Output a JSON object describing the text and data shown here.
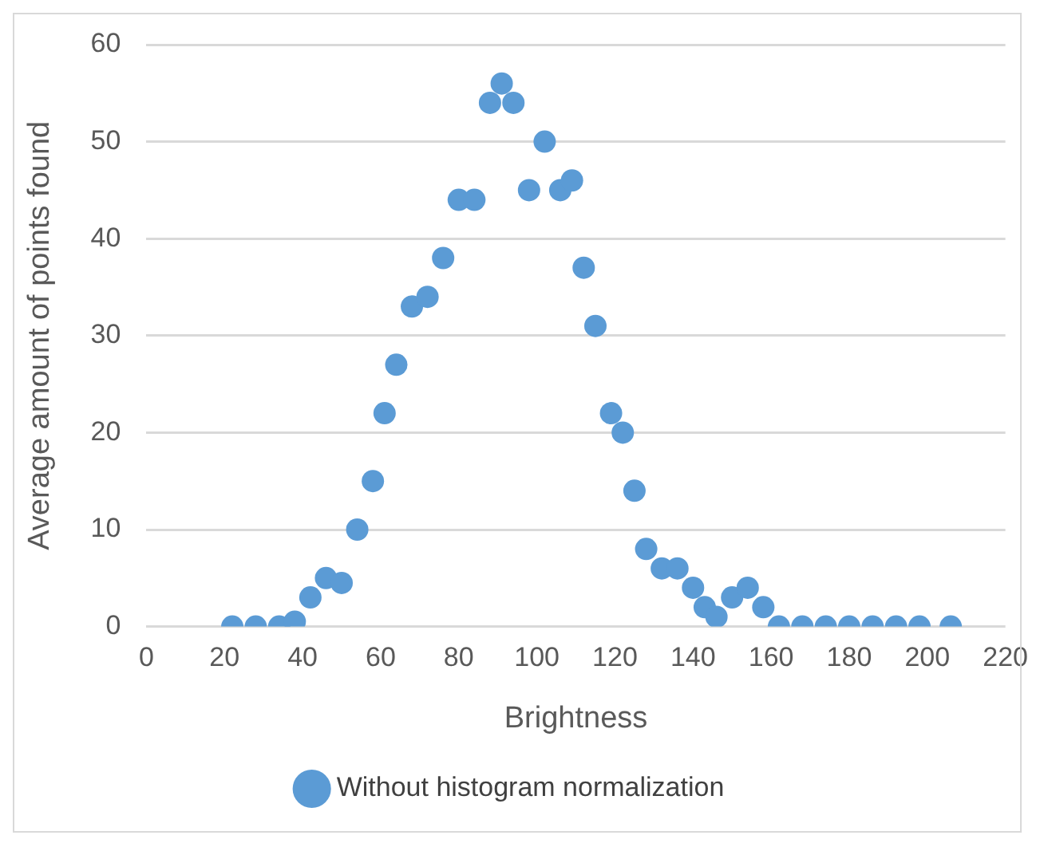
{
  "chart_data": {
    "type": "scatter",
    "xlabel": "Brightness",
    "ylabel": "Average amount of points found",
    "xlim": [
      0,
      220
    ],
    "xticks": [
      0,
      20,
      40,
      60,
      80,
      100,
      120,
      140,
      160,
      180,
      200,
      220
    ],
    "ylim": [
      0,
      60
    ],
    "yticks": [
      0,
      10,
      20,
      30,
      40,
      50,
      60
    ],
    "grid": "y",
    "legend": "bottom",
    "marker": "circle",
    "x": [
      22,
      28,
      34,
      38,
      42,
      46,
      50,
      54,
      58,
      61,
      64,
      68,
      72,
      76,
      80,
      84,
      88,
      91,
      94,
      98,
      102,
      106,
      109,
      112,
      115,
      119,
      122,
      125,
      128,
      132,
      136,
      140,
      143,
      146,
      150,
      154,
      158,
      162,
      168,
      174,
      180,
      186,
      192,
      198,
      206
    ],
    "series": [
      {
        "name": "Without histogram normalization",
        "color": "#5b9bd5",
        "values": [
          0,
          0,
          0,
          0.5,
          3,
          5,
          4.5,
          10,
          15,
          22,
          27,
          33,
          34,
          38,
          44,
          44,
          54,
          56,
          54,
          45,
          50,
          45,
          46,
          37,
          31,
          22,
          20,
          14,
          8,
          6,
          6,
          4,
          2,
          1,
          3,
          4,
          2,
          0,
          0,
          0,
          0,
          0,
          0,
          0,
          0
        ]
      }
    ]
  }
}
